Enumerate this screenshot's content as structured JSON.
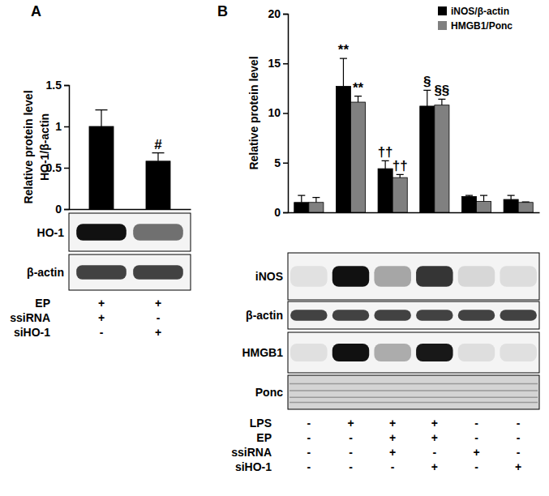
{
  "chart_data": [
    {
      "type": "bar",
      "label": "A",
      "y_label": "Relative protein level\nHO-1/β-actin",
      "categories": [
        null,
        null
      ],
      "values": [
        1.0,
        0.58
      ],
      "errors": [
        0.2,
        0.1
      ],
      "color": "#000000",
      "ylim": [
        0,
        1.5
      ],
      "yticks": [
        0,
        0.5,
        1,
        1.5
      ],
      "blots": [
        {
          "label": "HO-1",
          "series": 0
        },
        {
          "label": "β-actin"
        }
      ],
      "conditions": [
        {
          "label": "EP",
          "signs": [
            "+",
            "+"
          ]
        },
        {
          "label": "ssiRNA",
          "signs": [
            "+",
            "-"
          ]
        },
        {
          "label": "siHO-1",
          "signs": [
            "-",
            "+"
          ]
        }
      ],
      "annotations": [
        {
          "text": "#",
          "category": 1,
          "series": 0
        }
      ]
    },
    {
      "type": "bar",
      "label": "B",
      "y_label": "Relative protein level",
      "categories": [
        null,
        null,
        null,
        null,
        null,
        null
      ],
      "series": [
        {
          "name": "iNOS/β-actin",
          "color": "#000000",
          "values": [
            1.0,
            12.7,
            4.4,
            10.7,
            1.6,
            1.3
          ],
          "errors": [
            0.7,
            2.8,
            0.8,
            1.6,
            0.1,
            0.4
          ]
        },
        {
          "name": "HMGB1/Ponc",
          "color": "#808080",
          "values": [
            1.0,
            11.1,
            3.5,
            10.8,
            1.1,
            1.0
          ],
          "errors": [
            0.5,
            0.6,
            0.3,
            0.6,
            0.6,
            0.05
          ]
        }
      ],
      "ylim": [
        0,
        20
      ],
      "yticks": [
        0,
        5,
        10,
        15,
        20
      ],
      "legend": "top-right",
      "blots": [
        {
          "label": "iNOS",
          "series": 0
        },
        {
          "label": "β-actin"
        },
        {
          "label": "HMGB1",
          "series": 1
        },
        {
          "label": "Ponc"
        }
      ],
      "conditions": [
        {
          "label": "LPS",
          "signs": [
            "-",
            "+",
            "+",
            "+",
            "-",
            "-"
          ]
        },
        {
          "label": "EP",
          "signs": [
            "-",
            "-",
            "+",
            "+",
            "-",
            "-"
          ]
        },
        {
          "label": "ssiRNA",
          "signs": [
            "-",
            "-",
            "+",
            "-",
            "+",
            "-"
          ]
        },
        {
          "label": "siHO-1",
          "signs": [
            "-",
            "-",
            "-",
            "+",
            "-",
            "+"
          ]
        }
      ],
      "annotations": [
        {
          "text": "**",
          "category": 1,
          "series": 0
        },
        {
          "text": "**",
          "category": 1,
          "series": 1
        },
        {
          "text": "††",
          "category": 2,
          "series": 0
        },
        {
          "text": "††",
          "category": 2,
          "series": 1
        },
        {
          "text": "§",
          "category": 3,
          "series": 0
        },
        {
          "text": "§§",
          "category": 3,
          "series": 1
        }
      ]
    }
  ]
}
